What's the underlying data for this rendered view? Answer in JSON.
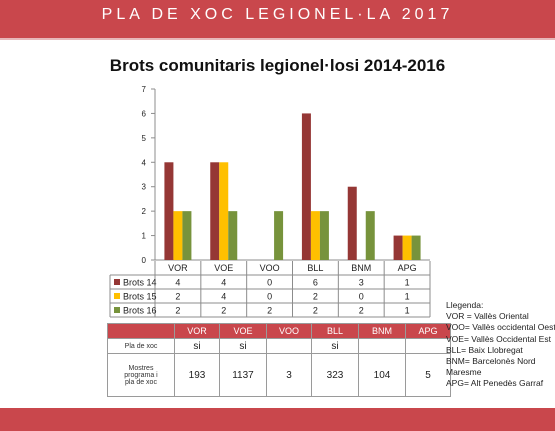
{
  "header": {
    "title": "PLA DE XOC LEGIONEL·LA 2017"
  },
  "chart_data": {
    "type": "bar",
    "title": "Brots comunitaris legionel·losi 2014-2016",
    "categories": [
      "VOR",
      "VOE",
      "VOO",
      "BLL",
      "BNM",
      "APG"
    ],
    "ylim": [
      0,
      7
    ],
    "yticks": [
      "0",
      "1",
      "2",
      "3",
      "4",
      "5",
      "6",
      "7"
    ],
    "grid": false,
    "series": [
      {
        "name": "Brots 14",
        "color": "#953735",
        "values": [
          4,
          4,
          0,
          6,
          3,
          1
        ]
      },
      {
        "name": "Brots 15",
        "color": "#ffc000",
        "values": [
          2,
          4,
          0,
          2,
          0,
          1
        ]
      },
      {
        "name": "Brots 16",
        "color": "#77933c",
        "values": [
          2,
          2,
          2,
          2,
          2,
          1
        ]
      }
    ]
  },
  "program_table": {
    "columns": [
      "VOR",
      "VOE",
      "VOO",
      "BLL",
      "BNM",
      "APG"
    ],
    "rows": [
      {
        "label": "Pla de xoc",
        "values": [
          "si",
          "si",
          "",
          "si",
          "",
          ""
        ]
      },
      {
        "label_lines": [
          "Mostres",
          "programa i",
          "pla de xoc"
        ],
        "values": [
          "193",
          "1137",
          "3",
          "323",
          "104",
          "5"
        ]
      }
    ]
  },
  "legend": {
    "heading": "Llegenda:",
    "items": [
      "VOR = Vallès Oriental",
      "VOO= Vallès occidental Oest",
      "VOE= Vallès Occidental Est",
      "BLL= Baix Llobregat",
      "BNM= Barcelonès Nord",
      "Maresme",
      "APG= Alt Penedès Garraf"
    ]
  },
  "colors": {
    "banner": "#c9474c",
    "table_header": "#c9474c"
  }
}
